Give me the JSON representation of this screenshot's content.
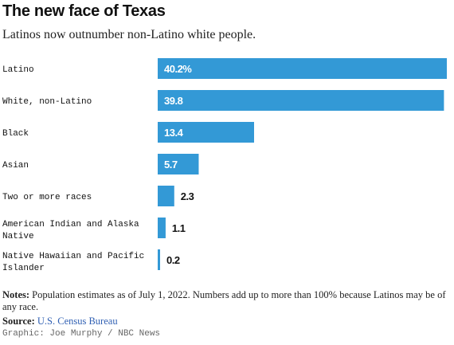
{
  "header": {
    "title": "The new face of Texas",
    "subtitle": "Latinos now outnumber non-Latino white people."
  },
  "chart_data": {
    "type": "bar",
    "orientation": "horizontal",
    "title": "The new face of Texas",
    "subtitle": "Latinos now outnumber non-Latino white people.",
    "categories": [
      "Latino",
      "White, non-Latino",
      "Black",
      "Asian",
      "Two or more races",
      "American Indian and Alaska Native",
      "Native Hawaiian and Pacific Islander"
    ],
    "category_lines": [
      [
        "Latino"
      ],
      [
        "White, non-Latino"
      ],
      [
        "Black"
      ],
      [
        "Asian"
      ],
      [
        "Two or more races"
      ],
      [
        "American Indian and Alaska",
        "Native"
      ],
      [
        "Native Hawaiian and Pacific",
        "Islander"
      ]
    ],
    "values": [
      40.2,
      39.8,
      13.4,
      5.7,
      2.3,
      1.1,
      0.2
    ],
    "data_labels": [
      "40.2%",
      "39.8",
      "13.4",
      "5.7",
      "2.3",
      "1.1",
      "0.2"
    ],
    "xlim": [
      0,
      40.2
    ],
    "grid": false,
    "legend": "none",
    "bar_color": "#3399d6"
  },
  "footer": {
    "notes_label": "Notes:",
    "notes_text": "Population estimates as of July 1, 2022. Numbers add up to more than 100% because Latinos may be of any race.",
    "source_label": "Source:",
    "source_text": "U.S. Census Bureau",
    "credit": "Graphic: Joe Murphy / NBC News"
  },
  "colors": {
    "bar": "#3399d6",
    "label_inside": "#ffffff",
    "label_outside": "#111111",
    "source_link": "#2f5fb3"
  }
}
